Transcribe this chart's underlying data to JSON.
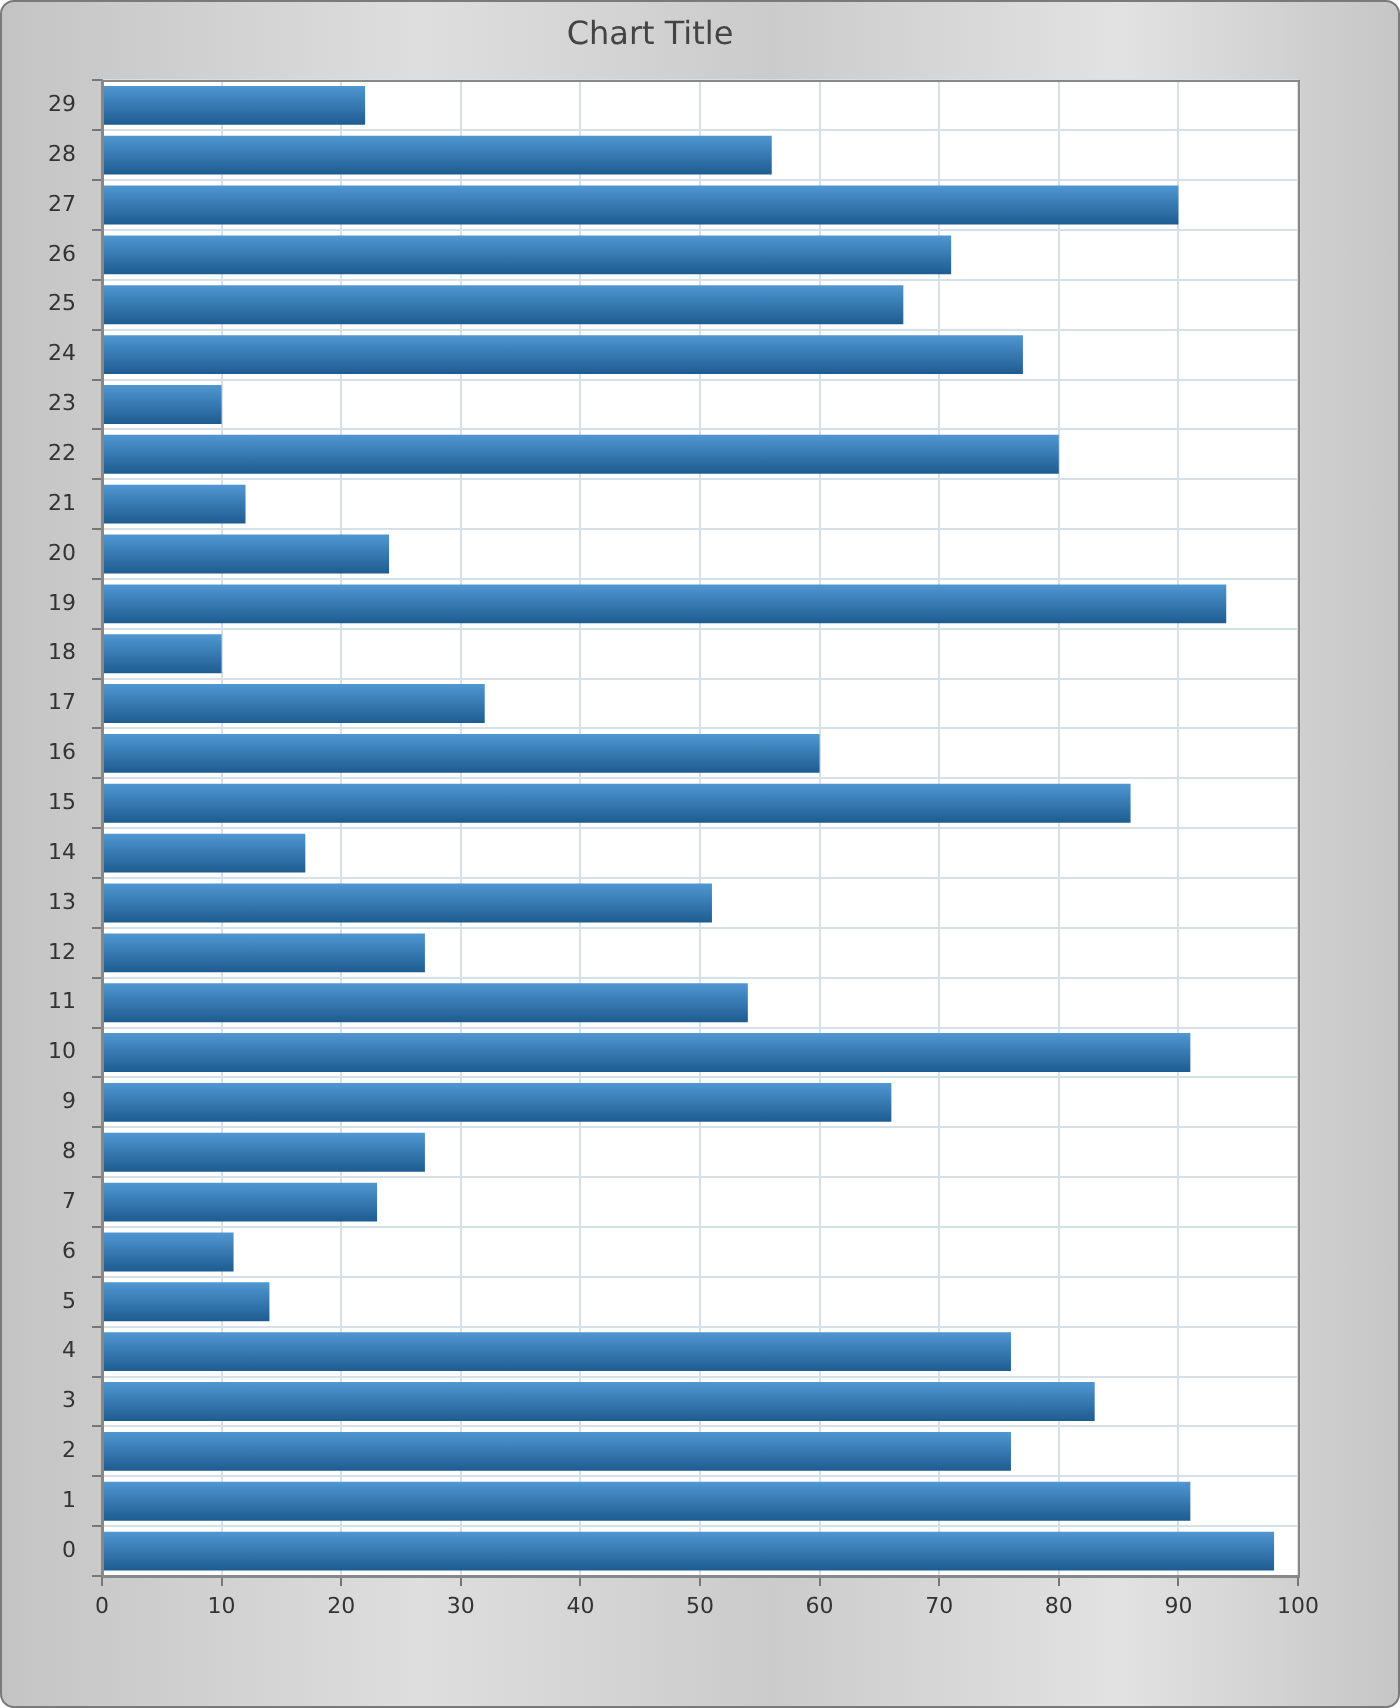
{
  "chart_data": {
    "type": "bar",
    "title": "Chart Title",
    "orientation": "horizontal",
    "categories": [
      "29",
      "28",
      "27",
      "26",
      "25",
      "24",
      "23",
      "22",
      "21",
      "20",
      "19",
      "18",
      "17",
      "16",
      "15",
      "14",
      "13",
      "12",
      "11",
      "10",
      "9",
      "8",
      "7",
      "6",
      "5",
      "4",
      "3",
      "2",
      "1",
      "0"
    ],
    "values": [
      22,
      56,
      90,
      71,
      67,
      77,
      10,
      80,
      12,
      24,
      94,
      10,
      32,
      60,
      86,
      17,
      51,
      27,
      54,
      91,
      66,
      27,
      23,
      11,
      14,
      76,
      83,
      76,
      91,
      98
    ],
    "color": "#2a80c8",
    "xlim": [
      0,
      100
    ],
    "xticks": [
      0,
      10,
      20,
      30,
      40,
      50,
      60,
      70,
      80,
      90,
      100
    ],
    "grid": true
  }
}
